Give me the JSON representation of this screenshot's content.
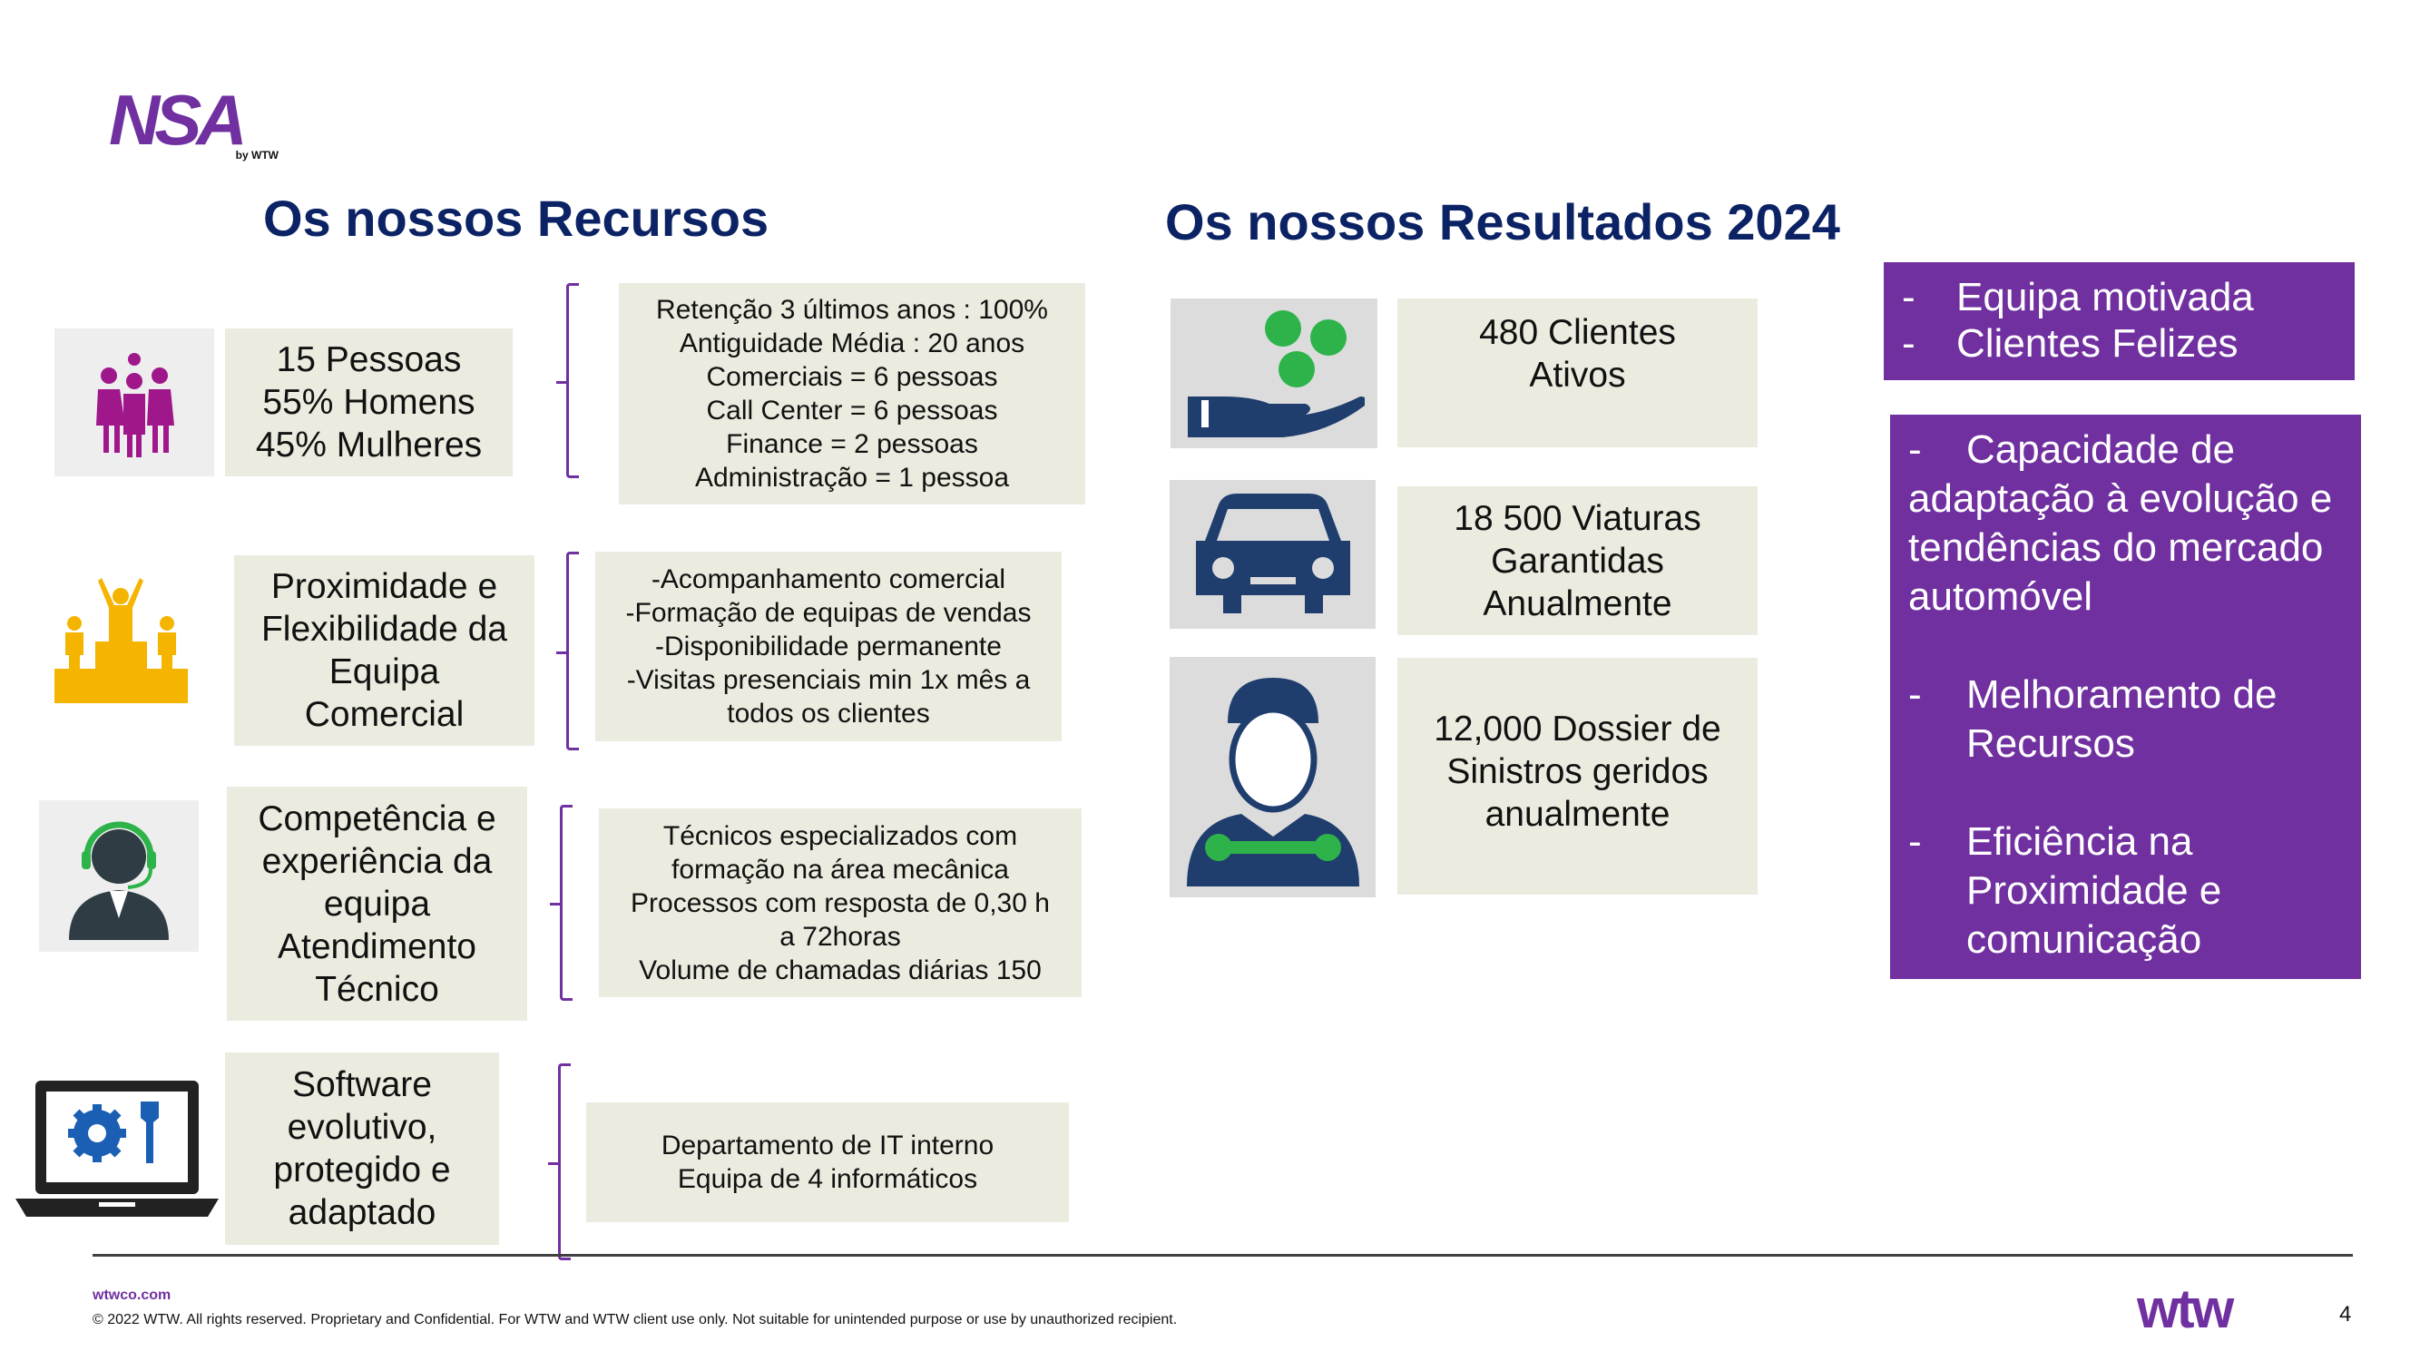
{
  "logo": {
    "text": "NSA",
    "sub": "by WTW",
    "color": "#7030a0"
  },
  "left": {
    "title": "Os nossos Recursos",
    "rows": [
      {
        "icon": "people-group-icon",
        "label": "15 Pessoas\n55% Homens\n45% Mulheres",
        "details": "Retenção 3 últimos anos : 100%\nAntiguidade Média : 20 anos\nComerciais = 6 pessoas\nCall Center = 6  pessoas\nFinance = 2 pessoas\nAdministração = 1 pessoa"
      },
      {
        "icon": "team-podium-icon",
        "label": "Proximidade e\nFlexibilidade da\nEquipa\nComercial",
        "details": "-Acompanhamento comercial\n-Formação de equipas de vendas\n-Disponibilidade permanente\n-Visitas presenciais min 1x mês a\ntodos os clientes"
      },
      {
        "icon": "headset-agent-icon",
        "label": "Competência e\nexperiência da\nequipa\nAtendimento\nTécnico",
        "details": "Técnicos especializados com\nformação  na área mecânica\nProcessos com resposta de 0,30 h\na 72horas\nVolume de chamadas diárias 150"
      },
      {
        "icon": "laptop-settings-icon",
        "label": "Software\nevolutivo,\nprotegido e\nadaptado",
        "details": "Departamento de IT interno\nEquipa de 4 informáticos"
      }
    ]
  },
  "right": {
    "title": "Os nossos Resultados 2024",
    "results": [
      {
        "icon": "hand-coins-icon",
        "text": "480 Clientes\nAtivos"
      },
      {
        "icon": "car-icon",
        "text": "18 500 Viaturas\nGarantidas\nAnualmente"
      },
      {
        "icon": "mechanic-icon",
        "text": "12,000 Dossier de\nSinistros geridos\nanualmente"
      }
    ],
    "highlights1": [
      "Equipa motivada",
      "Clientes Felizes"
    ],
    "highlights2": [
      "Capacidade de adaptação à evolução e tendências do mercado automóvel",
      "Melhoramento de Recursos",
      "Eficiência na Proximidade e comunicação"
    ],
    "bullet": "-"
  },
  "footer": {
    "site": "wtwco.com",
    "copyright": "© 2022 WTW. All rights reserved. Proprietary and Confidential. For WTW and WTW client use only. Not suitable for unintended purpose or use by unauthorized recipient.",
    "brand": "wtw",
    "page": "4"
  },
  "colors": {
    "purple": "#7030a0",
    "navy": "#0b2265",
    "box": "#ecebdf",
    "icon_blue": "#1f3e6e",
    "icon_green": "#2db34a",
    "magenta": "#a0168b",
    "gold": "#f5b400"
  }
}
